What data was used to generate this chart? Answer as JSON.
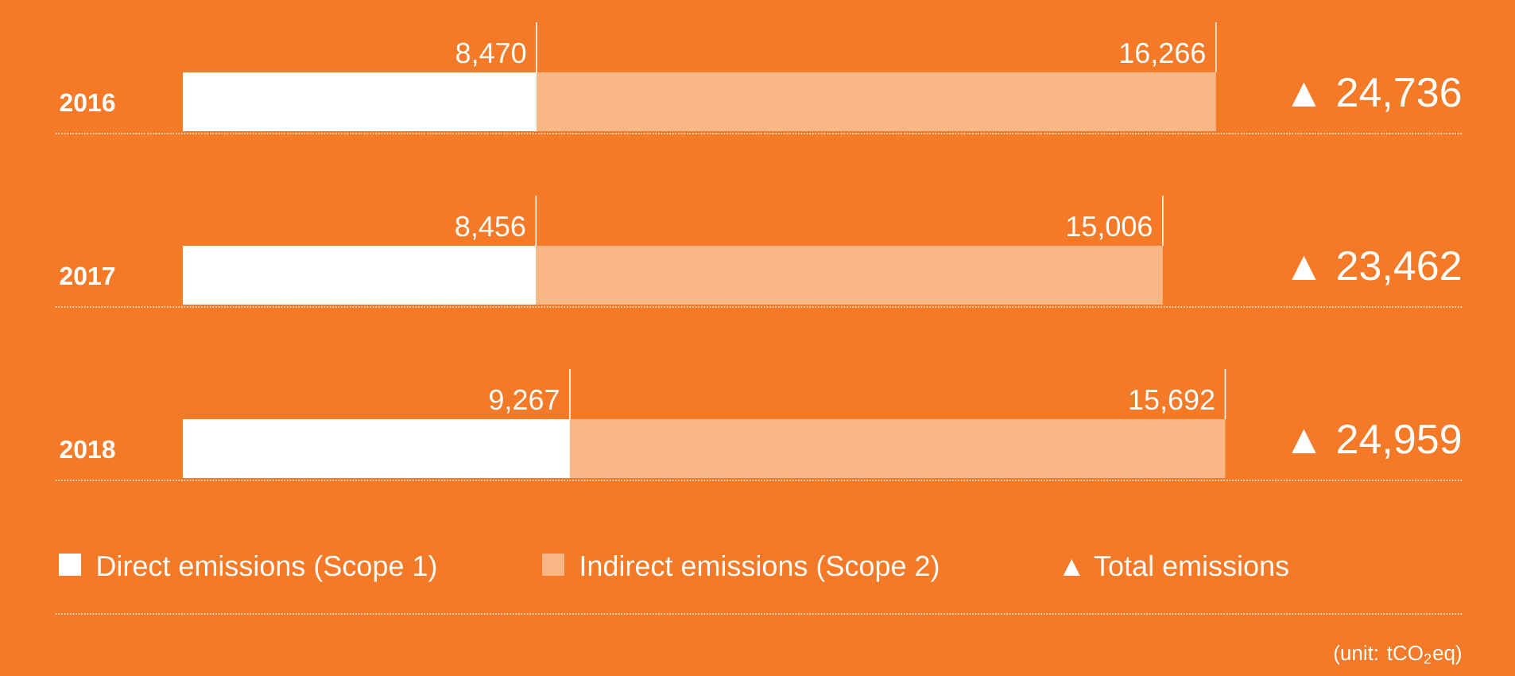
{
  "chart_data": {
    "type": "bar",
    "orientation": "horizontal",
    "stacked": true,
    "categories": [
      "2016",
      "2017",
      "2018"
    ],
    "series": [
      {
        "name": "Direct emissions (Scope 1)",
        "color": "#ffffff",
        "values": [
          8470,
          8456,
          9267
        ],
        "value_labels": [
          "8,470",
          "8,456",
          "9,267"
        ]
      },
      {
        "name": "Indirect emissions (Scope 2)",
        "color": "#f9b785",
        "values": [
          16266,
          15006,
          15692
        ],
        "value_labels": [
          "16,266",
          "15,006",
          "15,692"
        ]
      }
    ],
    "totals": [
      "▲ 24,736",
      "▲ 23,462",
      "▲ 24,959"
    ],
    "legend": "bottom",
    "annotations": [
      "▲ Total emissions",
      "(unit: tCO$_{2}$eq)"
    ]
  }
}
